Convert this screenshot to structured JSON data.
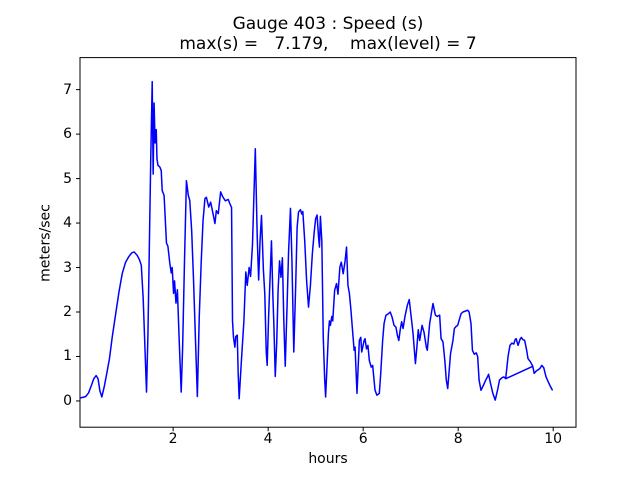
{
  "figure": {
    "title": "Gauge 403 : Speed (s)",
    "subtitle": "max(s) =   7.179,    max(level) = 7"
  },
  "chart_data": {
    "type": "line",
    "title": "Gauge 403 : Speed (s)",
    "subtitle": "max(s) =   7.179,    max(level) = 7",
    "xlabel": "hours",
    "ylabel": "meters/sec",
    "xlim": [
      0.04,
      10.48
    ],
    "ylim": [
      -0.59,
      7.72
    ],
    "xticks": [
      2,
      4,
      6,
      8,
      10
    ],
    "yticks": [
      0,
      1,
      2,
      3,
      4,
      5,
      6,
      7
    ],
    "grid": false,
    "legend_position": "none",
    "line_color": "#0000ff",
    "line_width": 1.5,
    "axis_color": "#000000",
    "max_s": 7.179,
    "max_level": 7,
    "series": [
      {
        "name": "Speed (s)",
        "points": [
          [
            0.05,
            0.07
          ],
          [
            0.1,
            0.08
          ],
          [
            0.16,
            0.1
          ],
          [
            0.22,
            0.18
          ],
          [
            0.28,
            0.35
          ],
          [
            0.33,
            0.5
          ],
          [
            0.38,
            0.57
          ],
          [
            0.42,
            0.5
          ],
          [
            0.46,
            0.22
          ],
          [
            0.5,
            0.09
          ],
          [
            0.55,
            0.32
          ],
          [
            0.6,
            0.6
          ],
          [
            0.66,
            0.95
          ],
          [
            0.72,
            1.45
          ],
          [
            0.79,
            1.95
          ],
          [
            0.86,
            2.45
          ],
          [
            0.93,
            2.87
          ],
          [
            1.0,
            3.12
          ],
          [
            1.07,
            3.25
          ],
          [
            1.13,
            3.33
          ],
          [
            1.18,
            3.35
          ],
          [
            1.24,
            3.28
          ],
          [
            1.29,
            3.18
          ],
          [
            1.33,
            3.05
          ],
          [
            1.37,
            2.3
          ],
          [
            1.41,
            1.1
          ],
          [
            1.44,
            0.2
          ],
          [
            1.47,
            1.5
          ],
          [
            1.5,
            3.5
          ],
          [
            1.53,
            5.5
          ],
          [
            1.56,
            7.179
          ],
          [
            1.58,
            5.1
          ],
          [
            1.6,
            6.7
          ],
          [
            1.62,
            5.8
          ],
          [
            1.645,
            6.1
          ],
          [
            1.66,
            5.45
          ],
          [
            1.68,
            5.3
          ],
          [
            1.72,
            5.26
          ],
          [
            1.75,
            5.18
          ],
          [
            1.77,
            4.73
          ],
          [
            1.81,
            4.62
          ],
          [
            1.86,
            3.55
          ],
          [
            1.89,
            3.48
          ],
          [
            1.93,
            3.1
          ],
          [
            1.96,
            2.88
          ],
          [
            1.98,
            3.0
          ],
          [
            2.01,
            2.42
          ],
          [
            2.03,
            2.7
          ],
          [
            2.06,
            2.2
          ],
          [
            2.09,
            2.5
          ],
          [
            2.13,
            1.3
          ],
          [
            2.17,
            0.2
          ],
          [
            2.2,
            1.2
          ],
          [
            2.24,
            3.17
          ],
          [
            2.28,
            4.95
          ],
          [
            2.32,
            4.62
          ],
          [
            2.35,
            4.51
          ],
          [
            2.39,
            3.84
          ],
          [
            2.43,
            2.71
          ],
          [
            2.47,
            1.4
          ],
          [
            2.51,
            0.1
          ],
          [
            2.55,
            1.89
          ],
          [
            2.59,
            3.09
          ],
          [
            2.63,
            4.06
          ],
          [
            2.67,
            4.55
          ],
          [
            2.7,
            4.58
          ],
          [
            2.75,
            4.36
          ],
          [
            2.79,
            4.47
          ],
          [
            2.84,
            4.21
          ],
          [
            2.88,
            3.99
          ],
          [
            2.91,
            4.28
          ],
          [
            2.95,
            4.21
          ],
          [
            3.0,
            4.7
          ],
          [
            3.05,
            4.58
          ],
          [
            3.1,
            4.5
          ],
          [
            3.16,
            4.53
          ],
          [
            3.2,
            4.42
          ],
          [
            3.23,
            4.35
          ],
          [
            3.25,
            1.8
          ],
          [
            3.27,
            1.44
          ],
          [
            3.3,
            1.21
          ],
          [
            3.32,
            1.45
          ],
          [
            3.35,
            1.48
          ],
          [
            3.37,
            0.6
          ],
          [
            3.39,
            0.05
          ],
          [
            3.44,
            0.95
          ],
          [
            3.49,
            1.8
          ],
          [
            3.53,
            2.9
          ],
          [
            3.56,
            2.6
          ],
          [
            3.6,
            3.0
          ],
          [
            3.63,
            2.8
          ],
          [
            3.67,
            3.5
          ],
          [
            3.7,
            4.6
          ],
          [
            3.73,
            5.67
          ],
          [
            3.77,
            3.7
          ],
          [
            3.8,
            2.72
          ],
          [
            3.83,
            3.6
          ],
          [
            3.86,
            4.17
          ],
          [
            3.9,
            2.95
          ],
          [
            3.93,
            2.4
          ],
          [
            3.96,
            1.1
          ],
          [
            3.98,
            0.8
          ],
          [
            4.01,
            1.9
          ],
          [
            4.04,
            2.75
          ],
          [
            4.07,
            3.6
          ],
          [
            4.1,
            2.35
          ],
          [
            4.12,
            1.75
          ],
          [
            4.15,
            0.55
          ],
          [
            4.18,
            1.3
          ],
          [
            4.21,
            2.5
          ],
          [
            4.24,
            3.15
          ],
          [
            4.27,
            2.78
          ],
          [
            4.3,
            3.22
          ],
          [
            4.33,
            1.8
          ],
          [
            4.36,
            0.78
          ],
          [
            4.4,
            2.2
          ],
          [
            4.43,
            3.35
          ],
          [
            4.47,
            4.33
          ],
          [
            4.5,
            3.2
          ],
          [
            4.54,
            1.1
          ],
          [
            4.58,
            2.6
          ],
          [
            4.61,
            3.9
          ],
          [
            4.64,
            4.25
          ],
          [
            4.68,
            4.3
          ],
          [
            4.71,
            4.2
          ],
          [
            4.73,
            4.26
          ],
          [
            4.77,
            3.6
          ],
          [
            4.81,
            2.7
          ],
          [
            4.85,
            2.11
          ],
          [
            4.89,
            2.6
          ],
          [
            4.93,
            3.3
          ],
          [
            4.97,
            3.8
          ],
          [
            5.0,
            4.1
          ],
          [
            5.03,
            4.18
          ],
          [
            5.06,
            3.7
          ],
          [
            5.08,
            3.46
          ],
          [
            5.1,
            4.15
          ],
          [
            5.13,
            3.6
          ],
          [
            5.16,
            1.44
          ],
          [
            5.19,
            0.5
          ],
          [
            5.21,
            0.09
          ],
          [
            5.24,
            0.8
          ],
          [
            5.27,
            1.55
          ],
          [
            5.29,
            1.8
          ],
          [
            5.31,
            1.7
          ],
          [
            5.34,
            1.9
          ],
          [
            5.36,
            1.8
          ],
          [
            5.4,
            2.49
          ],
          [
            5.44,
            2.64
          ],
          [
            5.47,
            2.4
          ],
          [
            5.51,
            3.01
          ],
          [
            5.54,
            3.12
          ],
          [
            5.58,
            2.86
          ],
          [
            5.62,
            3.15
          ],
          [
            5.65,
            3.46
          ],
          [
            5.68,
            2.6
          ],
          [
            5.71,
            2.42
          ],
          [
            5.74,
            2.08
          ],
          [
            5.76,
            1.81
          ],
          [
            5.81,
            1.14
          ],
          [
            5.83,
            1.21
          ],
          [
            5.87,
            0.17
          ],
          [
            5.92,
            1.36
          ],
          [
            5.95,
            1.43
          ],
          [
            5.97,
            1.1
          ],
          [
            6.02,
            1.36
          ],
          [
            6.04,
            1.4
          ],
          [
            6.07,
            1.17
          ],
          [
            6.1,
            1.25
          ],
          [
            6.13,
            0.91
          ],
          [
            6.17,
            0.76
          ],
          [
            6.2,
            0.8
          ],
          [
            6.25,
            0.24
          ],
          [
            6.29,
            0.13
          ],
          [
            6.34,
            0.17
          ],
          [
            6.37,
            0.62
          ],
          [
            6.41,
            1.36
          ],
          [
            6.44,
            1.74
          ],
          [
            6.48,
            1.93
          ],
          [
            6.52,
            1.95
          ],
          [
            6.57,
            2.0
          ],
          [
            6.61,
            1.88
          ],
          [
            6.65,
            1.7
          ],
          [
            6.69,
            1.66
          ],
          [
            6.72,
            1.48
          ],
          [
            6.75,
            1.36
          ],
          [
            6.78,
            1.6
          ],
          [
            6.81,
            1.78
          ],
          [
            6.84,
            1.63
          ],
          [
            6.88,
            1.9
          ],
          [
            6.93,
            2.15
          ],
          [
            6.97,
            2.28
          ],
          [
            7.01,
            1.9
          ],
          [
            7.05,
            1.52
          ],
          [
            7.1,
            0.84
          ],
          [
            7.13,
            1.2
          ],
          [
            7.16,
            1.6
          ],
          [
            7.19,
            1.36
          ],
          [
            7.24,
            1.7
          ],
          [
            7.28,
            1.55
          ],
          [
            7.33,
            1.21
          ],
          [
            7.35,
            1.14
          ],
          [
            7.4,
            1.74
          ],
          [
            7.44,
            2.0
          ],
          [
            7.47,
            2.19
          ],
          [
            7.52,
            1.93
          ],
          [
            7.56,
            1.9
          ],
          [
            7.61,
            1.93
          ],
          [
            7.64,
            1.4
          ],
          [
            7.68,
            1.33
          ],
          [
            7.72,
            0.9
          ],
          [
            7.75,
            0.47
          ],
          [
            7.78,
            0.28
          ],
          [
            7.84,
            1.07
          ],
          [
            7.89,
            1.36
          ],
          [
            7.92,
            1.63
          ],
          [
            7.96,
            1.68
          ],
          [
            7.99,
            1.7
          ],
          [
            8.03,
            1.85
          ],
          [
            8.06,
            1.96
          ],
          [
            8.1,
            2.0
          ],
          [
            8.15,
            2.02
          ],
          [
            8.2,
            2.04
          ],
          [
            8.23,
            2.0
          ],
          [
            8.27,
            1.74
          ],
          [
            8.3,
            1.14
          ],
          [
            8.34,
            1.05
          ],
          [
            8.38,
            1.08
          ],
          [
            8.41,
            1.0
          ],
          [
            8.44,
            0.47
          ],
          [
            8.48,
            0.24
          ],
          [
            8.53,
            0.35
          ],
          [
            8.58,
            0.47
          ],
          [
            8.62,
            0.55
          ],
          [
            8.64,
            0.6
          ],
          [
            8.68,
            0.4
          ],
          [
            8.73,
            0.17
          ],
          [
            8.78,
            0.02
          ],
          [
            8.83,
            0.25
          ],
          [
            8.87,
            0.47
          ],
          [
            8.92,
            0.52
          ],
          [
            8.96,
            0.54
          ],
          [
            9.0,
            0.5
          ],
          [
            9.05,
            1.0
          ],
          [
            9.09,
            1.25
          ],
          [
            9.13,
            1.3
          ],
          [
            9.17,
            1.28
          ],
          [
            9.2,
            1.38
          ],
          [
            9.22,
            1.4
          ],
          [
            9.26,
            1.25
          ],
          [
            9.3,
            1.38
          ],
          [
            9.33,
            1.43
          ],
          [
            9.36,
            1.38
          ],
          [
            9.4,
            1.36
          ],
          [
            9.44,
            1.15
          ],
          [
            9.47,
            0.95
          ],
          [
            9.52,
            0.88
          ],
          [
            9.57,
            0.78
          ],
          [
            9.6,
            0.62
          ],
          [
            9.64,
            0.67
          ],
          [
            9.68,
            0.7
          ],
          [
            9.72,
            0.73
          ],
          [
            9.76,
            0.8
          ],
          [
            9.8,
            0.75
          ],
          [
            9.85,
            0.54
          ],
          [
            9.9,
            0.42
          ],
          [
            9.94,
            0.33
          ],
          [
            9.98,
            0.25
          ]
        ]
      }
    ],
    "gap_segment": {
      "name": "straight interpolation chord",
      "points": [
        [
          9.0,
          0.5
        ],
        [
          9.57,
          0.78
        ]
      ]
    }
  }
}
